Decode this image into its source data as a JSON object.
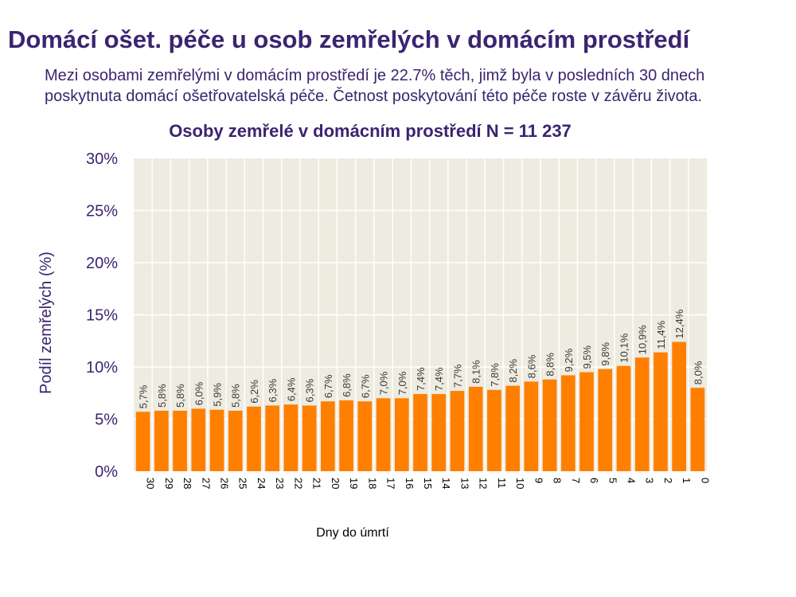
{
  "header": {
    "title": "Domácí ošet. péče u osob zemřelých v domácím prostředí",
    "subtitle": "Mezi osobami zemřelými v domácím prostředí je 22.7% těch, jimž byla v posledních 30 dnech poskytnuta domácí ošetřovatelská péče. Četnost poskytování této péče roste v závěru života."
  },
  "colors": {
    "bar": "#ff7f00",
    "plot_background": "#eeebe0",
    "gridline": "#ffffff",
    "text_primary": "#3b2470"
  },
  "chart_data": {
    "type": "bar",
    "title": "Osoby zemřelé v domácním prostředí N = 11 237",
    "xlabel": "Dny do úmrtí",
    "ylabel": "Podíl zemřelých (%)",
    "ylim": [
      0,
      30
    ],
    "yticks": [
      "0%",
      "5%",
      "10%",
      "15%",
      "20%",
      "25%",
      "30%"
    ],
    "grid": true,
    "categories": [
      "30",
      "29",
      "28",
      "27",
      "26",
      "25",
      "24",
      "23",
      "22",
      "21",
      "20",
      "19",
      "18",
      "17",
      "16",
      "15",
      "14",
      "13",
      "12",
      "11",
      "10",
      "9",
      "8",
      "7",
      "6",
      "5",
      "4",
      "3",
      "2",
      "1",
      "0"
    ],
    "values": [
      5.7,
      5.8,
      5.8,
      6.0,
      5.9,
      5.8,
      6.2,
      6.3,
      6.4,
      6.3,
      6.7,
      6.8,
      6.7,
      7.0,
      7.0,
      7.4,
      7.4,
      7.7,
      8.1,
      7.8,
      8.2,
      8.6,
      8.8,
      9.2,
      9.5,
      9.8,
      10.1,
      10.9,
      11.4,
      12.4,
      8.0
    ],
    "data_labels": [
      "5,7%",
      "5,8%",
      "5,8%",
      "6,0%",
      "5,9%",
      "5,8%",
      "6,2%",
      "6,3%",
      "6,4%",
      "6,3%",
      "6,7%",
      "6,8%",
      "6,7%",
      "7,0%",
      "7,0%",
      "7,4%",
      "7,4%",
      "7,7%",
      "8,1%",
      "7,8%",
      "8,2%",
      "8,6%",
      "8,8%",
      "9,2%",
      "9,5%",
      "9,8%",
      "10,1%",
      "10,9%",
      "11,4%",
      "12,4%",
      "8,0%"
    ]
  }
}
